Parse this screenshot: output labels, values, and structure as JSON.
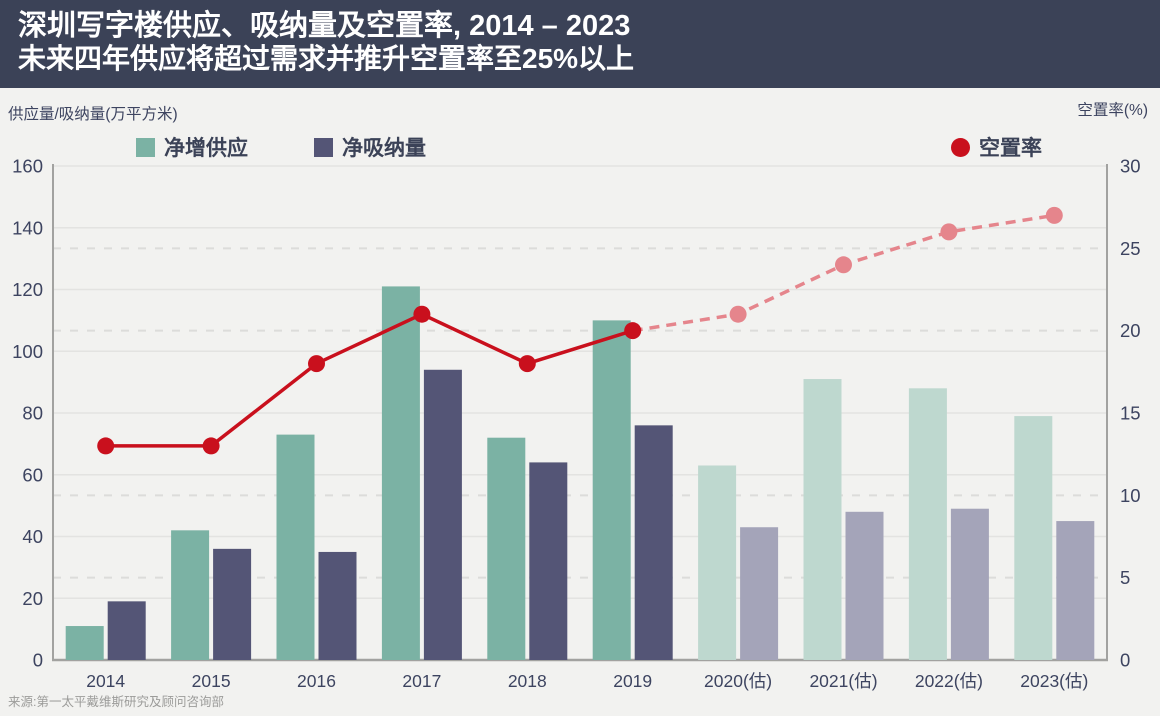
{
  "header": {
    "title": "深圳写字楼供应、吸纳量及空置率, 2014 – 2023",
    "subtitle": "未来四年供应将超过需求并推升空置率至25%以上"
  },
  "axis_titles": {
    "left": "供应量/吸纳量(万平方米)",
    "right": "空置率(%)"
  },
  "legend": [
    {
      "label": "净增供应",
      "marker": "square",
      "color": "#7bb2a4"
    },
    {
      "label": "净吸纳量",
      "marker": "square",
      "color": "#545576"
    },
    {
      "label": "空置率",
      "marker": "circle",
      "color": "#c9101d"
    }
  ],
  "source": "来源:第一太平戴维斯研究及顾问咨询部",
  "colors": {
    "header_bg": "#3b4257",
    "page_bg": "#f2f2f0",
    "text_navy": "#3d4460",
    "supply_bar": "#7bb2a4",
    "supply_bar_forecast": "#bed8cf",
    "absorption_bar": "#545576",
    "absorption_bar_forecast": "#a4a4b9",
    "vacancy_line": "#c9101d",
    "vacancy_line_forecast": "#e5858c",
    "grid_solid": "#e3e3e1",
    "grid_dashed": "#dcdcda",
    "axis_line": "#a2a2a0",
    "source_text": "#9c9c9a"
  },
  "chart_data": {
    "type": "bar+line",
    "title": "深圳写字楼供应、吸纳量及空置率, 2014 – 2023",
    "xlabel": "",
    "ylabel_left": "供应量/吸纳量(万平方米)",
    "ylabel_right": "空置率(%)",
    "categories": [
      "2014",
      "2015",
      "2016",
      "2017",
      "2018",
      "2019",
      "2020(估)",
      "2021(估)",
      "2022(估)",
      "2023(估)"
    ],
    "forecast_start_index": 6,
    "left_axis": {
      "min": 0,
      "max": 160,
      "step": 20
    },
    "right_axis": {
      "min": 0,
      "max": 30,
      "step": 5
    },
    "grid": "solid lines for left axis steps, dashed lines for right axis steps",
    "legend_position": "top",
    "series": [
      {
        "name": "净增供应",
        "slug": "net-supply",
        "type": "bar",
        "axis": "left",
        "color": "#7bb2a4",
        "forecast_color": "#bed8cf",
        "values": [
          11,
          42,
          73,
          121,
          72,
          110,
          63,
          91,
          88,
          79
        ]
      },
      {
        "name": "净吸纳量",
        "slug": "net-absorption",
        "type": "bar",
        "axis": "left",
        "color": "#545576",
        "forecast_color": "#a4a4b9",
        "values": [
          19,
          36,
          35,
          94,
          64,
          76,
          43,
          48,
          49,
          45
        ]
      },
      {
        "name": "空置率",
        "slug": "vacancy-rate",
        "type": "line",
        "axis": "right",
        "color": "#c9101d",
        "forecast_color": "#e5858c",
        "values": [
          13,
          13,
          18,
          21,
          18,
          20,
          21,
          24,
          26,
          27
        ]
      }
    ]
  }
}
